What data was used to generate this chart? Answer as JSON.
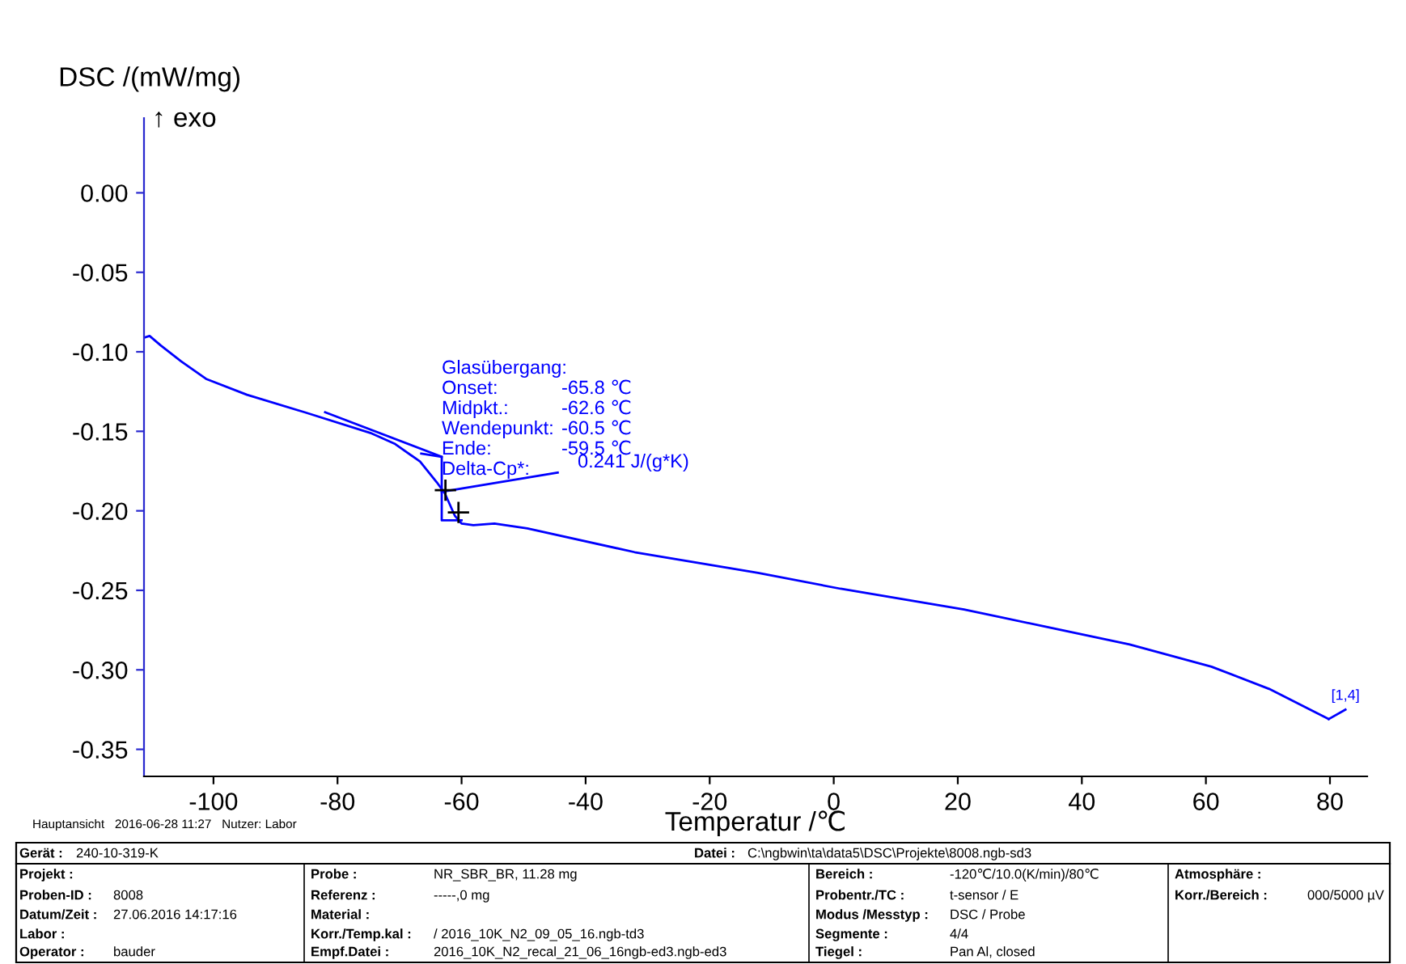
{
  "chart_data": {
    "type": "line",
    "xlabel": "Temperatur /℃",
    "ylabel": "DSC /(mW/mg)",
    "xlim": [
      -111.2,
      86
    ],
    "ylim": [
      -0.367,
      0.047
    ],
    "xticks": [
      -100,
      -80,
      -60,
      -40,
      -20,
      0,
      20,
      40,
      60,
      80
    ],
    "yticks": [
      {
        "value": 0,
        "label": "0.00"
      },
      {
        "value": -0.05,
        "label": "-0.05"
      },
      {
        "value": -0.1,
        "label": "-0.10"
      },
      {
        "value": -0.15,
        "label": "-0.15"
      },
      {
        "value": -0.2,
        "label": "-0.20"
      },
      {
        "value": -0.25,
        "label": "-0.25"
      },
      {
        "value": -0.3,
        "label": "-0.30"
      },
      {
        "value": -0.35,
        "label": "-0.35"
      }
    ],
    "grid": false,
    "series": [
      {
        "color": "#0000ff",
        "x": [
          -111.1,
          -110.3,
          -108.5,
          -105.2,
          -101.2,
          -94.6,
          -85.3,
          -74.7,
          -70.7,
          -66.7,
          -64.0,
          -62.7,
          -61.1,
          -60.0,
          -58.1,
          -54.7,
          -49.4,
          -32.1,
          -12.2,
          1.1,
          21.0,
          34.3,
          47.7,
          60.9,
          70.2,
          79.8
        ],
        "values": [
          -0.091,
          -0.09,
          -0.096,
          -0.106,
          -0.117,
          -0.127,
          -0.138,
          -0.151,
          -0.158,
          -0.169,
          -0.182,
          -0.189,
          -0.203,
          -0.208,
          -0.209,
          -0.208,
          -0.211,
          -0.226,
          -0.239,
          -0.249,
          -0.262,
          -0.273,
          -0.284,
          -0.298,
          -0.312,
          -0.331
        ]
      },
      {
        "type": "line",
        "color": "#0000ff",
        "x": [
          -82,
          -63.2,
          -63.2,
          -60
        ],
        "values": [
          -0.138,
          -0.166,
          -0.206,
          -0.206
        ]
      },
      {
        "type": "line",
        "color": "#0000ff",
        "x": [
          -66.5,
          -63.2
        ],
        "values": [
          -0.164,
          -0.166
        ]
      },
      {
        "type": "line",
        "color": "#0000ff",
        "x": [
          79.8,
          82.5
        ],
        "values": [
          -0.331,
          -0.325
        ]
      },
      {
        "type": "line",
        "color": "#0000ff",
        "x": [
          -63.2,
          -44.5
        ],
        "values": [
          -0.188,
          -0.176
        ]
      },
      {
        "type": "scatter",
        "color": "#000000",
        "marker": "cross",
        "x": [
          -62.6,
          -60.5
        ],
        "values": [
          -0.187,
          -0.201
        ]
      }
    ],
    "annotations": [
      "Glasübergang:",
      "Onset:",
      "-65.8 ℃",
      "Midpkt.:",
      "-62.6 ℃",
      "Wendepunkt:",
      "-60.5 ℃",
      "Ende:",
      "-59.5 ℃",
      "Delta-Cp*:",
      "0.241 J/(g*K)",
      {
        "text": "[1,4]",
        "x": 82.5,
        "y": -0.325
      },
      "↑ exo",
      "Hauptansicht   2016-06-28 11:27   Nutzer: Labor",
      "Gerät :",
      "240-10-319-K",
      "Datei :",
      "C:\\ngbwin\\ta\\data5\\DSC\\Projekte\\8008.ngb-sd3",
      "Projekt :",
      "Proben-ID :",
      "8008",
      "Datum/Zeit :",
      "27.06.2016 14:17:16",
      "Labor :",
      "Operator :",
      "bauder",
      "Probe :",
      "NR_SBR_BR, 11.28 mg",
      "Referenz :",
      "-----,0 mg",
      "Material :",
      "Korr./Temp.kal :",
      "/ 2016_10K_N2_09_05_16.ngb-td3",
      "Empf.Datei :",
      "2016_10K_N2_recal_21_06_16ngb-ed3.ngb-ed3",
      "Bereich :",
      "-120℃/10.0(K/min)/80℃",
      "Probentr./TC :",
      "t-sensor / E",
      "Modus /Messtyp :",
      "DSC / Probe",
      "Segmente :",
      "4/4",
      "Tiegel :",
      "Pan Al, closed",
      "Atmosphäre :",
      "Korr./Bereich :",
      "000/5000 µV"
    ]
  }
}
